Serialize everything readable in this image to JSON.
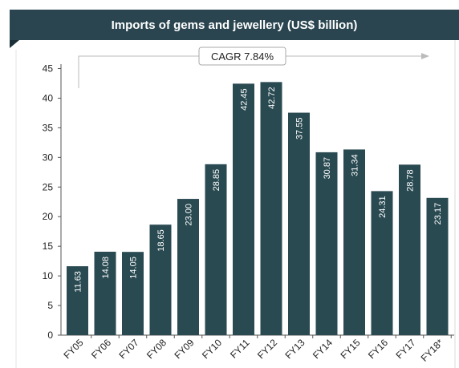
{
  "chart_data": {
    "type": "bar",
    "title": "Imports of gems and jewellery (US$ billion)",
    "categories": [
      "FY05",
      "FY06",
      "FY07",
      "FY08",
      "FY09",
      "FY10",
      "FY11",
      "FY12",
      "FY13",
      "FY14",
      "FY15",
      "FY16",
      "FY17",
      "FY18*"
    ],
    "values": [
      11.63,
      14.08,
      14.05,
      18.65,
      23.0,
      28.85,
      42.45,
      42.72,
      37.55,
      30.87,
      31.34,
      24.31,
      28.78,
      23.17
    ],
    "value_labels": [
      "11.63",
      "14.08",
      "14.05",
      "18.65",
      "23.00",
      "28.85",
      "42.45",
      "42.72",
      "37.55",
      "30.87",
      "31.34",
      "24.31",
      "28.78",
      "23.17"
    ],
    "yticks": [
      "0",
      "5",
      "10",
      "15",
      "20",
      "25",
      "30",
      "35",
      "40",
      "45"
    ],
    "ylim": [
      0,
      45
    ],
    "xlabel": "",
    "ylabel": "",
    "grid": false,
    "bar_color": "#2a4a52",
    "annotation": "CAGR 7.84%"
  }
}
